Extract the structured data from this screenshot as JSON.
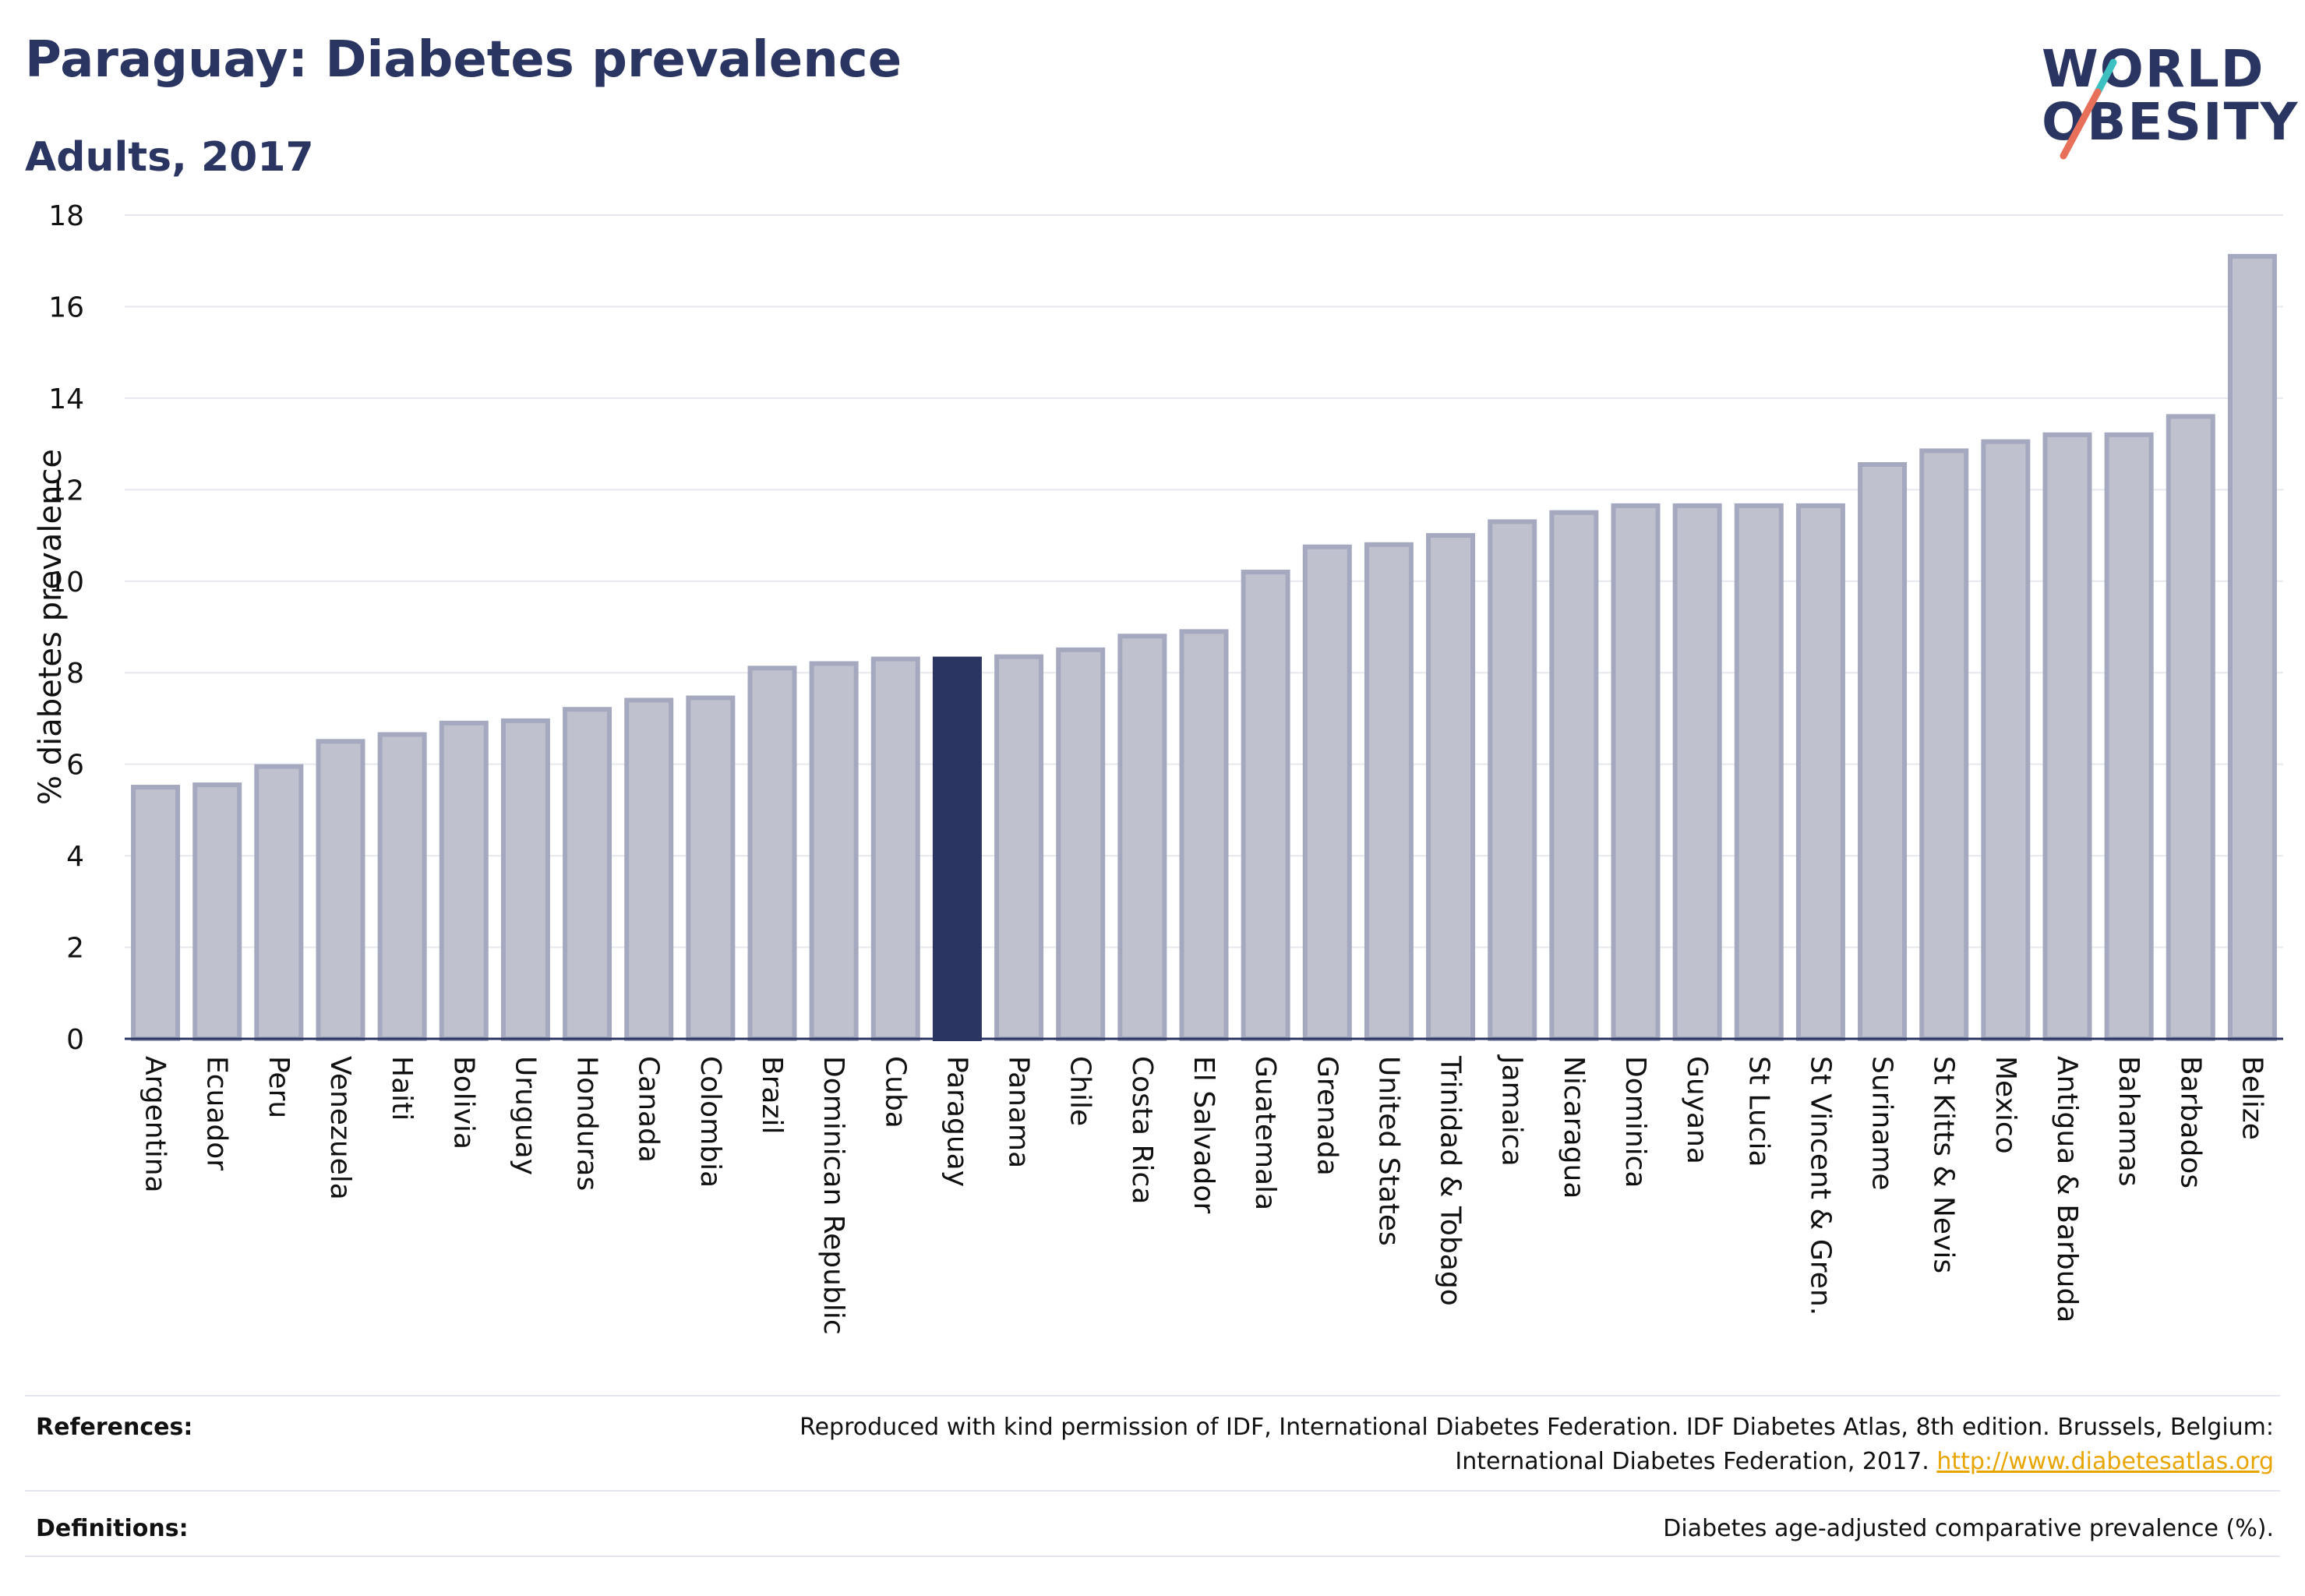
{
  "header": {
    "title": "Paraguay: Diabetes prevalence",
    "subtitle": "Adults, 2017"
  },
  "logo": {
    "line1": "WORLD",
    "line2": "OBESITY",
    "accent_colors": [
      "#3cc1c0",
      "#e8705a"
    ]
  },
  "chart_data": {
    "type": "bar",
    "ylabel": "% diabetes prevalence",
    "xlabel": "",
    "ylim": [
      0,
      18
    ],
    "yticks": [
      0,
      2,
      4,
      6,
      8,
      10,
      12,
      14,
      16,
      18
    ],
    "grid": true,
    "highlight": "Paraguay",
    "highlight_color": "#2b3561",
    "bar_color": "#bfc2ce",
    "bar_edge_color": "#a5a9bf",
    "categories": [
      "Argentina",
      "Ecuador",
      "Peru",
      "Venezuela",
      "Haiti",
      "Bolivia",
      "Uruguay",
      "Honduras",
      "Canada",
      "Colombia",
      "Brazil",
      "Dominican Republic",
      "Cuba",
      "Paraguay",
      "Panama",
      "Chile",
      "Costa Rica",
      "El Salvador",
      "Guatemala",
      "Grenada",
      "United States",
      "Trinidad & Tobago",
      "Jamaica",
      "Nicaragua",
      "Dominica",
      "Guyana",
      "St Lucia",
      "St Vincent & Gren.",
      "Suriname",
      "St Kitts & Nevis",
      "Mexico",
      "Antigua & Barbuda",
      "Bahamas",
      "Barbados",
      "Belize"
    ],
    "values": [
      5.5,
      5.55,
      5.95,
      6.5,
      6.65,
      6.9,
      6.95,
      7.2,
      7.4,
      7.45,
      8.1,
      8.2,
      8.3,
      8.3,
      8.35,
      8.5,
      8.8,
      8.9,
      10.2,
      10.75,
      10.8,
      11.0,
      11.3,
      11.5,
      11.65,
      11.65,
      11.65,
      11.65,
      12.55,
      12.85,
      13.05,
      13.2,
      13.2,
      13.6,
      17.1
    ]
  },
  "footer": {
    "references_label": "References:",
    "references_text": "Reproduced with kind permission of IDF, International Diabetes Federation. IDF Diabetes Atlas, 8th edition. Brussels, Belgium: International Diabetes Federation, 2017.",
    "references_link": "http://www.diabetesatlas.org",
    "link_color": "#e8a500",
    "definitions_label": "Definitions:",
    "definitions_text": "Diabetes age-adjusted comparative prevalence (%)."
  }
}
